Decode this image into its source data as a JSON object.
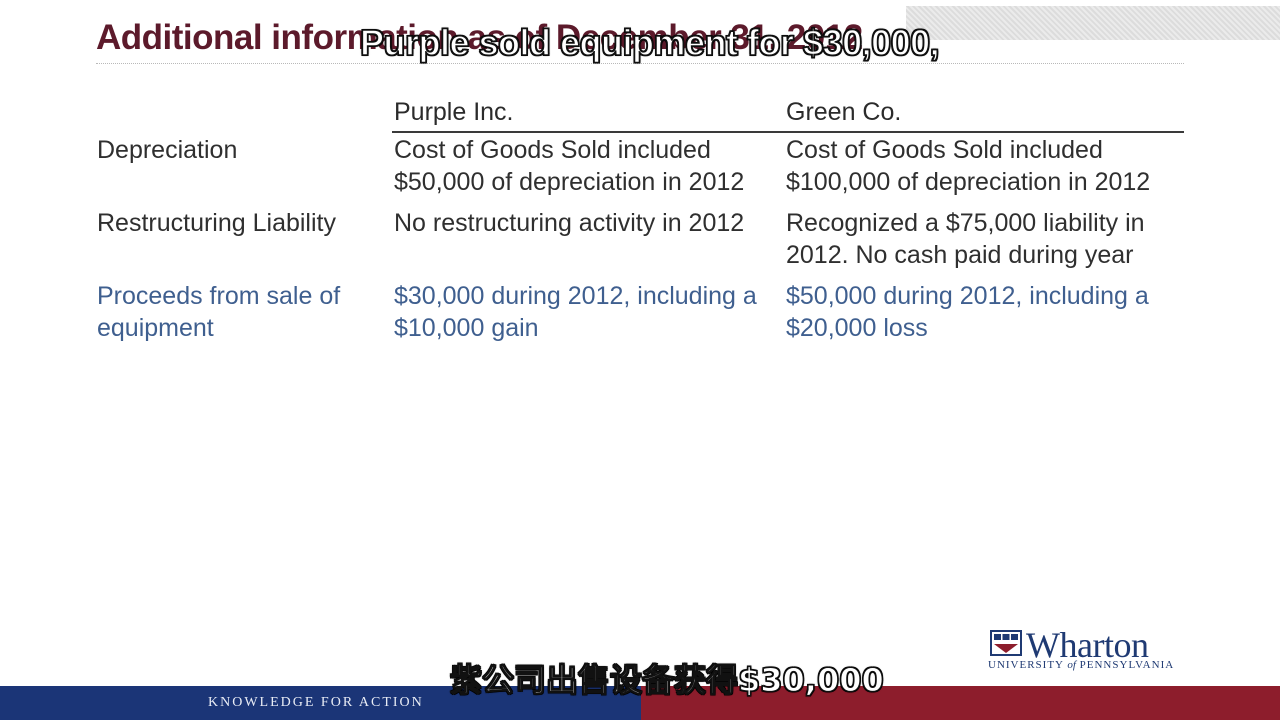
{
  "slide": {
    "title": "Additional information as of December 31, 2012",
    "overlay_subtitle_top": "Purple sold equipment for $30,000,",
    "overlay_subtitle_bottom": "紫公司出售设备获得$30,000"
  },
  "table": {
    "headers": [
      "Purple Inc.",
      "Green Co."
    ],
    "rows": [
      {
        "label": [
          "Depreciation"
        ],
        "purple": [
          "Cost of Goods Sold included",
          "$50,000 of depreciation in 2012"
        ],
        "green": [
          "Cost of Goods Sold included",
          "$100,000 of depreciation in 2012"
        ]
      },
      {
        "label": [
          "Restructuring Liability"
        ],
        "purple": [
          "No restructuring activity in 2012"
        ],
        "green": [
          "Recognized a $75,000 liability in",
          "2012.  No cash paid during year"
        ]
      },
      {
        "label": [
          "Proceeds from sale of",
          "equipment"
        ],
        "purple": [
          "$30,000 during 2012, including a",
          "$10,000 gain"
        ],
        "green": [
          "$50,000 during 2012, including a",
          "$20,000 loss"
        ]
      }
    ]
  },
  "logo": {
    "name": "Wharton",
    "sub_left": "UNIVERSITY ",
    "sub_of": "of",
    "sub_right": " PENNSYLVANIA"
  },
  "footer": {
    "tagline": "KNOWLEDGE FOR ACTION"
  },
  "colors": {
    "title": "#5c1a2b",
    "highlight_row": "#3f5f8f",
    "footer_blue": "#1b3577",
    "footer_red": "#8d1d2c",
    "logo": "#1f3a73"
  }
}
